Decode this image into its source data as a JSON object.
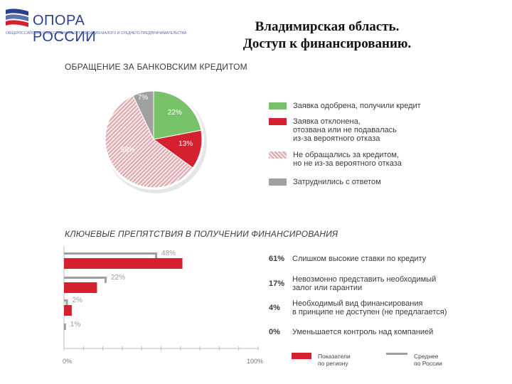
{
  "header": {
    "logo_name": "ОПОРА РОССИИ",
    "logo_tagline": "ОБЩЕРОССИЙСКАЯ ОБЩЕСТВЕННАЯ ОРГАНИЗАЦИЯ МАЛОГО И СРЕДНЕГО ПРЕДПРИНИМАТЕЛЬСТВА",
    "title_line1": "Владимирская область.",
    "title_line2": "Доступ к финансированию."
  },
  "colors": {
    "green": "#78c26a",
    "red": "#d4202f",
    "gray": "#a0a0a0",
    "hatch": "#d9a9ad"
  },
  "chart_data": [
    {
      "type": "pie",
      "title": "ОБРАЩЕНИЕ ЗА БАНКОВСКИМ КРЕДИТОМ",
      "slices": [
        {
          "label": "Заявка одобрена, получили кредит",
          "value": 22,
          "value_label": "22%",
          "color": "green"
        },
        {
          "label": "Заявка отклонена, отозвана или не подавалась из-за вероятного отказа",
          "value": 13,
          "value_label": "13%",
          "color": "red"
        },
        {
          "label": "Не обращались за кредитом, но не из-за вероятного отказа",
          "value": 58,
          "value_label": "58%",
          "color": "hatch"
        },
        {
          "label": "Затруднились с ответом",
          "value": 7,
          "value_label": "7%",
          "color": "gray"
        }
      ],
      "legend": [
        [
          "Заявка одобрена, получили кредит"
        ],
        [
          "Заявка отклонена,",
          "отозвана или не подавалась",
          "из-за вероятного отказа"
        ],
        [
          "Не обращались за кредитом,",
          "но не из-за вероятного отказа"
        ],
        [
          "Затруднились с ответом"
        ]
      ]
    },
    {
      "type": "bar",
      "orientation": "horizontal",
      "title": "КЛЮЧЕВЫЕ ПРЕПЯТСТВИЯ В ПОЛУЧЕНИИ ФИНАНСИРОВАНИЯ",
      "xlim": [
        0,
        100
      ],
      "tick_labels": [
        "0%",
        "100%"
      ],
      "categories": [
        [
          "Слишком высокие ставки по кредиту"
        ],
        [
          "Невозмонно представить необходимый",
          "залог или гарантии"
        ],
        [
          "Необходимый вид финансирования",
          "в принципе не доступен (не предлагается)"
        ],
        [
          "Уменьшается контроль над компанией"
        ]
      ],
      "series": [
        {
          "name": "Показатели по региону",
          "color": "red",
          "values": [
            61,
            17,
            4,
            0
          ],
          "value_labels": [
            "61%",
            "17%",
            "4%",
            "0%"
          ]
        },
        {
          "name": "Среднее по России",
          "color": "gray",
          "values": [
            48,
            22,
            2,
            1
          ],
          "value_labels": [
            "48%",
            "22%",
            "2%",
            "1%"
          ]
        }
      ],
      "legend": [
        [
          "Показатели",
          "по региону"
        ],
        [
          "Среднее",
          "по России"
        ]
      ]
    }
  ]
}
